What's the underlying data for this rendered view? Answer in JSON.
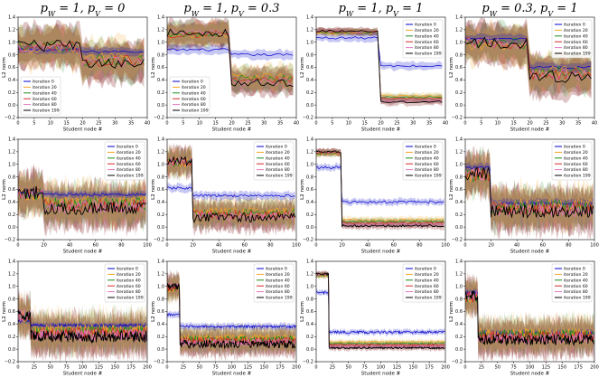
{
  "column_titles": [
    "p_W = 1, p_V = 0",
    "p_W = 1, p_V = 0.3",
    "p_W = 1, p_V = 1",
    "p_W = 0.3, p_V = 1"
  ],
  "series_colors": [
    "#0000cc",
    "#f5a623",
    "#1f8c1f",
    "#d62728",
    "#e377c2",
    "#000000"
  ],
  "chart_data": {
    "type": "line",
    "layout": "grid 3x4",
    "series_names": [
      "iteration 0",
      "iteration 20",
      "iteration 40",
      "iteration 60",
      "iteration 80",
      "iteration 199"
    ],
    "xlabel": "Student node #",
    "ylabel": "L2 norm",
    "ylim": [
      -0.2,
      1.4
    ],
    "yticks": [
      "−0.2",
      "0.0",
      "0.2",
      "0.4",
      "0.6",
      "0.8",
      "1.0",
      "1.2",
      "1.4"
    ],
    "teacher_nodes": 20,
    "rows": [
      {
        "n_nodes": 40,
        "xlim": [
          0,
          40
        ],
        "xticks": [
          "0",
          "5",
          "10",
          "15",
          "20",
          "25",
          "30",
          "35",
          "40"
        ]
      },
      {
        "n_nodes": 100,
        "xlim": [
          0,
          100
        ],
        "xticks": [
          "0",
          "20",
          "40",
          "60",
          "80",
          "100"
        ]
      },
      {
        "n_nodes": 200,
        "xlim": [
          0,
          200
        ],
        "xticks": [
          "0",
          "25",
          "50",
          "75",
          "100",
          "125",
          "150",
          "175",
          "200"
        ]
      }
    ],
    "panels": [
      {
        "row": 0,
        "col": 0,
        "legend": "lower-left",
        "it0": [
          0.88,
          0.85
        ],
        "final": [
          0.95,
          0.65
        ],
        "spread": 0.28,
        "band0": 0.06
      },
      {
        "row": 0,
        "col": 1,
        "legend": "lower-left",
        "it0": [
          0.88,
          0.8
        ],
        "final": [
          1.15,
          0.35
        ],
        "spread": 0.18,
        "band0": 0.07
      },
      {
        "row": 0,
        "col": 2,
        "legend": "upper-right",
        "it0": [
          1.07,
          0.62
        ],
        "final": [
          1.18,
          0.05
        ],
        "spread": 0.05,
        "band0": 0.06
      },
      {
        "row": 0,
        "col": 3,
        "legend": "upper-right",
        "it0": [
          1.05,
          0.6
        ],
        "final": [
          1.0,
          0.45
        ],
        "spread": 0.28,
        "band0": 0.07
      },
      {
        "row": 1,
        "col": 0,
        "legend": "upper-right",
        "it0": [
          0.55,
          0.52
        ],
        "final": [
          0.55,
          0.3
        ],
        "spread": 0.3,
        "band0": 0.05
      },
      {
        "row": 1,
        "col": 1,
        "legend": "upper-right",
        "it0": [
          0.62,
          0.5
        ],
        "final": [
          1.05,
          0.15
        ],
        "spread": 0.2,
        "band0": 0.06
      },
      {
        "row": 1,
        "col": 2,
        "legend": "upper-right",
        "it0": [
          0.95,
          0.4
        ],
        "final": [
          1.2,
          0.02
        ],
        "spread": 0.05,
        "band0": 0.05
      },
      {
        "row": 1,
        "col": 3,
        "legend": "upper-right",
        "it0": [
          0.95,
          0.38
        ],
        "final": [
          0.85,
          0.25
        ],
        "spread": 0.3,
        "band0": 0.06
      },
      {
        "row": 2,
        "col": 0,
        "legend": "upper-right",
        "it0": [
          0.45,
          0.38
        ],
        "final": [
          0.55,
          0.2
        ],
        "spread": 0.28,
        "band0": 0.04
      },
      {
        "row": 2,
        "col": 1,
        "legend": "upper-right",
        "it0": [
          0.55,
          0.36
        ],
        "final": [
          1.0,
          0.08
        ],
        "spread": 0.18,
        "band0": 0.05
      },
      {
        "row": 2,
        "col": 2,
        "legend": "upper-right",
        "it0": [
          0.9,
          0.27
        ],
        "final": [
          1.2,
          0.02
        ],
        "spread": 0.04,
        "band0": 0.04
      },
      {
        "row": 2,
        "col": 3,
        "legend": "upper-right",
        "it0": [
          0.9,
          0.25
        ],
        "final": [
          0.85,
          0.15
        ],
        "spread": 0.25,
        "band0": 0.05
      }
    ]
  }
}
